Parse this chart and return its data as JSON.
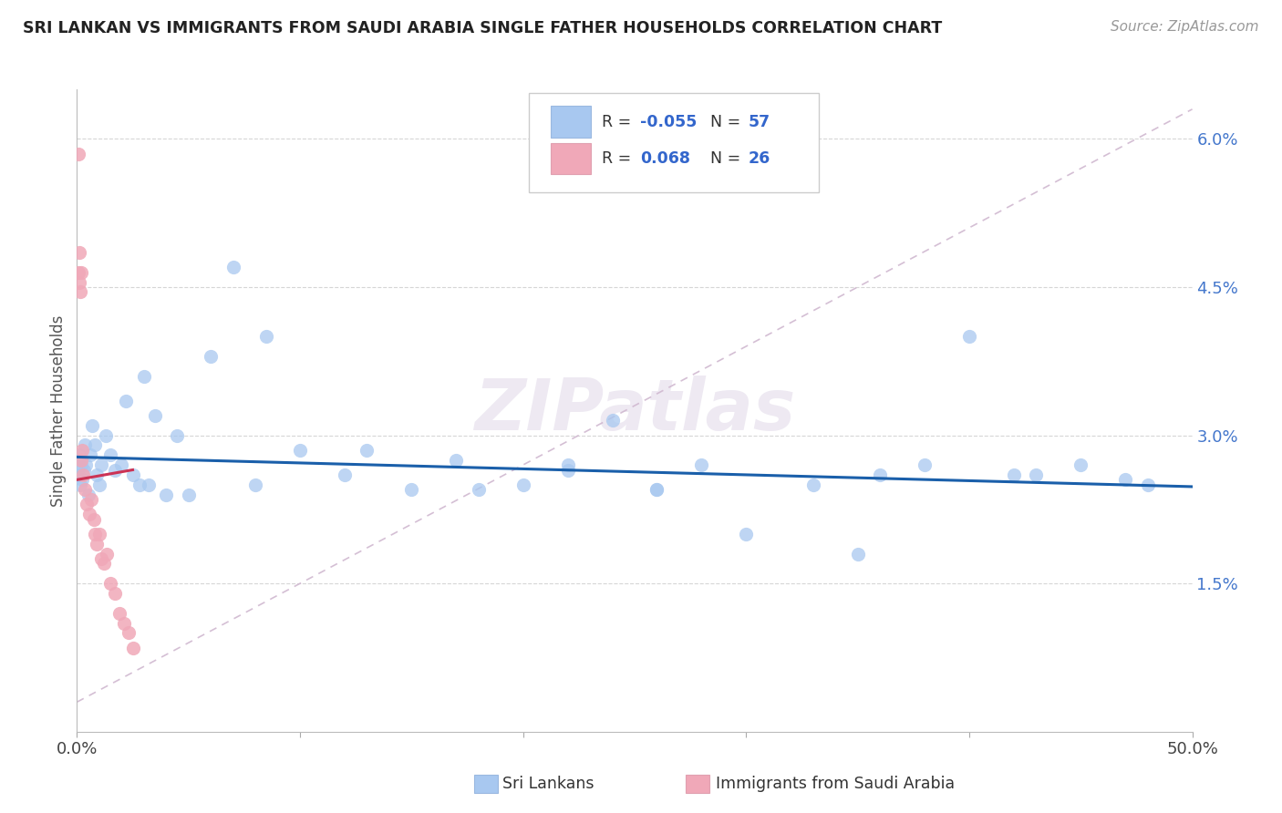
{
  "title": "SRI LANKAN VS IMMIGRANTS FROM SAUDI ARABIA SINGLE FATHER HOUSEHOLDS CORRELATION CHART",
  "source": "Source: ZipAtlas.com",
  "ylabel": "Single Father Households",
  "xmin": 0.0,
  "xmax": 50.0,
  "ymin": 0.0,
  "ymax": 6.5,
  "yticks": [
    1.5,
    3.0,
    4.5,
    6.0
  ],
  "ytick_labels": [
    "1.5%",
    "3.0%",
    "4.5%",
    "6.0%"
  ],
  "watermark": "ZIPatlas",
  "color_blue": "#a8c8f0",
  "color_pink": "#f0a8b8",
  "line_blue": "#1a5faa",
  "line_pink": "#cc3355",
  "line_dashed_color": "#d0b8d0",
  "sri_x": [
    0.05,
    0.08,
    0.1,
    0.15,
    0.2,
    0.25,
    0.3,
    0.35,
    0.4,
    0.5,
    0.6,
    0.7,
    0.8,
    0.9,
    1.0,
    1.1,
    1.3,
    1.5,
    1.7,
    2.0,
    2.2,
    2.5,
    2.8,
    3.0,
    3.5,
    4.0,
    4.5,
    5.0,
    6.0,
    7.0,
    8.5,
    10.0,
    12.0,
    13.0,
    15.0,
    17.0,
    20.0,
    22.0,
    24.0,
    26.0,
    28.0,
    30.0,
    33.0,
    36.0,
    38.0,
    40.0,
    43.0,
    45.0,
    47.0,
    48.0,
    26.0,
    35.0,
    42.0,
    22.0,
    18.0,
    8.0,
    3.2
  ],
  "sri_y": [
    2.75,
    2.6,
    2.8,
    2.5,
    2.7,
    2.55,
    2.65,
    2.9,
    2.7,
    2.4,
    2.8,
    3.1,
    2.9,
    2.6,
    2.5,
    2.7,
    3.0,
    2.8,
    2.65,
    2.7,
    3.35,
    2.6,
    2.5,
    3.6,
    3.2,
    2.4,
    3.0,
    2.4,
    3.8,
    4.7,
    4.0,
    2.85,
    2.6,
    2.85,
    2.45,
    2.75,
    2.5,
    2.65,
    3.15,
    2.45,
    2.7,
    2.0,
    2.5,
    2.6,
    2.7,
    4.0,
    2.6,
    2.7,
    2.55,
    2.5,
    2.45,
    1.8,
    2.6,
    2.7,
    2.45,
    2.5,
    2.5
  ],
  "saudi_x": [
    0.05,
    0.1,
    0.12,
    0.15,
    0.18,
    0.22,
    0.28,
    0.35,
    0.45,
    0.55,
    0.65,
    0.75,
    0.8,
    0.9,
    1.0,
    1.1,
    1.2,
    1.35,
    1.5,
    1.7,
    1.9,
    2.1,
    2.3,
    2.5,
    0.08,
    0.2
  ],
  "saudi_y": [
    5.85,
    4.85,
    4.55,
    4.45,
    2.75,
    2.85,
    2.6,
    2.45,
    2.3,
    2.2,
    2.35,
    2.15,
    2.0,
    1.9,
    2.0,
    1.75,
    1.7,
    1.8,
    1.5,
    1.4,
    1.2,
    1.1,
    1.0,
    0.85,
    4.65,
    4.65
  ]
}
